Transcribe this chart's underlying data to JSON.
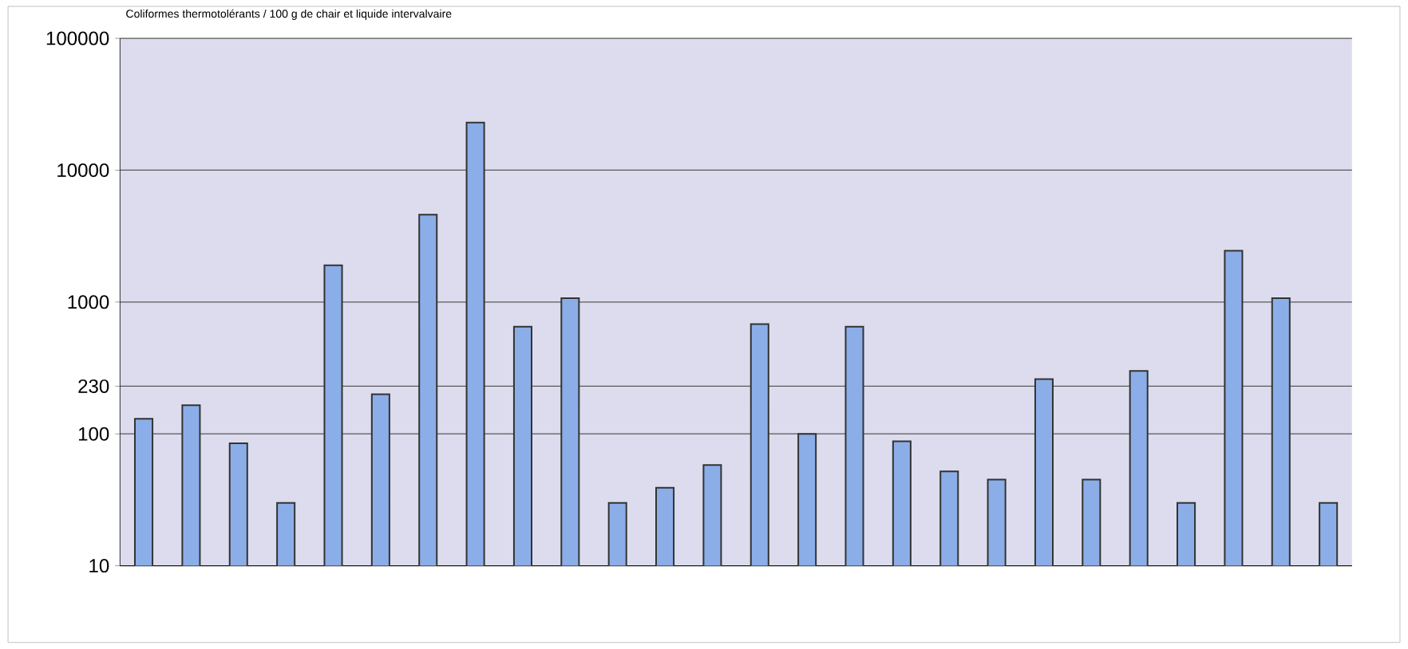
{
  "chart_data": {
    "type": "bar",
    "title": "Coliformes thermotolérants / 100 g de chair et liquide intervalvaire",
    "categories": [
      null,
      null,
      null,
      null,
      null,
      null,
      null,
      null,
      null,
      null,
      null,
      null,
      null,
      null,
      null,
      null,
      null,
      null,
      null,
      null,
      null,
      null,
      null,
      null,
      null,
      null
    ],
    "values": [
      130,
      165,
      85,
      30,
      1900,
      200,
      4600,
      23000,
      650,
      1070,
      30,
      39,
      58,
      680,
      100,
      650,
      88,
      52,
      45,
      260,
      45,
      300,
      30,
      2450,
      1070,
      30
    ],
    "color": "#8caee8",
    "log": true,
    "ylim": [
      10,
      100000
    ],
    "yticks": [
      10,
      100,
      230,
      1000,
      10000,
      100000
    ],
    "grid": "y"
  }
}
